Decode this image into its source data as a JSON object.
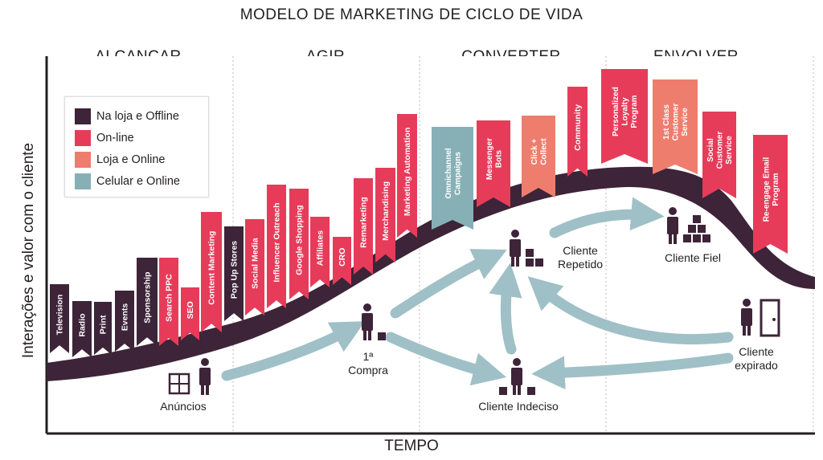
{
  "title": "MODELO DE MARKETING DE CICLO DE VIDA",
  "axis": {
    "y_label": "Interações e valor com o cliente",
    "x_label": "TEMPO"
  },
  "stages": [
    "ALCANÇAR",
    "AGIR",
    "CONVERTER",
    "ENVOLVER"
  ],
  "colors": {
    "dark": "#3d2438",
    "online": "#e63c5a",
    "store_online": "#ef7d6d",
    "mobile_online": "#86b0b6",
    "arrow": "#9fc0c6"
  },
  "legend": [
    {
      "label": "Na loja e Offline",
      "color": "#3d2438"
    },
    {
      "label": "On-line",
      "color": "#e63c5a"
    },
    {
      "label": "Loja e Online",
      "color": "#ef7d6d"
    },
    {
      "label": "Celular e Online",
      "color": "#86b0b6"
    }
  ],
  "tactics": [
    {
      "text": "Television",
      "lines": [
        "Television"
      ],
      "type": "dark"
    },
    {
      "text": "Radio",
      "lines": [
        "Radio"
      ],
      "type": "dark"
    },
    {
      "text": "Print",
      "lines": [
        "Print"
      ],
      "type": "dark"
    },
    {
      "text": "Events",
      "lines": [
        "Events"
      ],
      "type": "dark"
    },
    {
      "text": "Sponsorship",
      "lines": [
        "Sponsorship"
      ],
      "type": "dark"
    },
    {
      "text": "Search PPC",
      "lines": [
        "Search PPC"
      ],
      "type": "online"
    },
    {
      "text": "SEO",
      "lines": [
        "SEO"
      ],
      "type": "online"
    },
    {
      "text": "Content Marketing",
      "lines": [
        "Content Marketing"
      ],
      "type": "online"
    },
    {
      "text": "Pop Up Stores",
      "lines": [
        "Pop Up Stores"
      ],
      "type": "dark"
    },
    {
      "text": "Social Media",
      "lines": [
        "Social Media"
      ],
      "type": "online"
    },
    {
      "text": "Influencer Outreach",
      "lines": [
        "Influencer Outreach"
      ],
      "type": "online"
    },
    {
      "text": "Google Shopping",
      "lines": [
        "Google Shopping"
      ],
      "type": "online"
    },
    {
      "text": "Affiliates",
      "lines": [
        "Affiliates"
      ],
      "type": "online"
    },
    {
      "text": "CRO",
      "lines": [
        "CRO"
      ],
      "type": "online"
    },
    {
      "text": "Remarketing",
      "lines": [
        "Remarketing"
      ],
      "type": "online"
    },
    {
      "text": "Merchandising",
      "lines": [
        "Merchandising"
      ],
      "type": "online"
    },
    {
      "text": "Marketing Automation",
      "lines": [
        "Marketing Automation"
      ],
      "type": "online"
    },
    {
      "text": "Omnichannel Campaigns",
      "lines": [
        "Omnichannel",
        "Campaigns"
      ],
      "type": "mobile_online"
    },
    {
      "text": "Messenger Bots",
      "lines": [
        "Messenger",
        "Bots"
      ],
      "type": "online"
    },
    {
      "text": "Click + Collect",
      "lines": [
        "Click +",
        "Collect"
      ],
      "type": "store_online"
    },
    {
      "text": "Community",
      "lines": [
        "Community"
      ],
      "type": "online"
    },
    {
      "text": "Personalized Loyalty Program",
      "lines": [
        "Personalized",
        "Loyalty",
        "Program"
      ],
      "type": "online"
    },
    {
      "text": "1st Class Customer Service",
      "lines": [
        "1st Class",
        "Customer",
        "Service"
      ],
      "type": "store_online"
    },
    {
      "text": "Social Customer Service",
      "lines": [
        "Social",
        "Customer",
        "Service"
      ],
      "type": "online"
    },
    {
      "text": "Re-engage Email Program",
      "lines": [
        "Re-engage Email",
        "Program"
      ],
      "type": "online"
    }
  ],
  "nodes": {
    "ads": "Anúncios",
    "first_purchase": [
      "1ª",
      "Compra"
    ],
    "undecided": "Cliente Indeciso",
    "repeat": [
      "Cliente",
      "Repetido"
    ],
    "loyal": "Cliente Fiel",
    "expired": [
      "Cliente",
      "expirado"
    ]
  }
}
